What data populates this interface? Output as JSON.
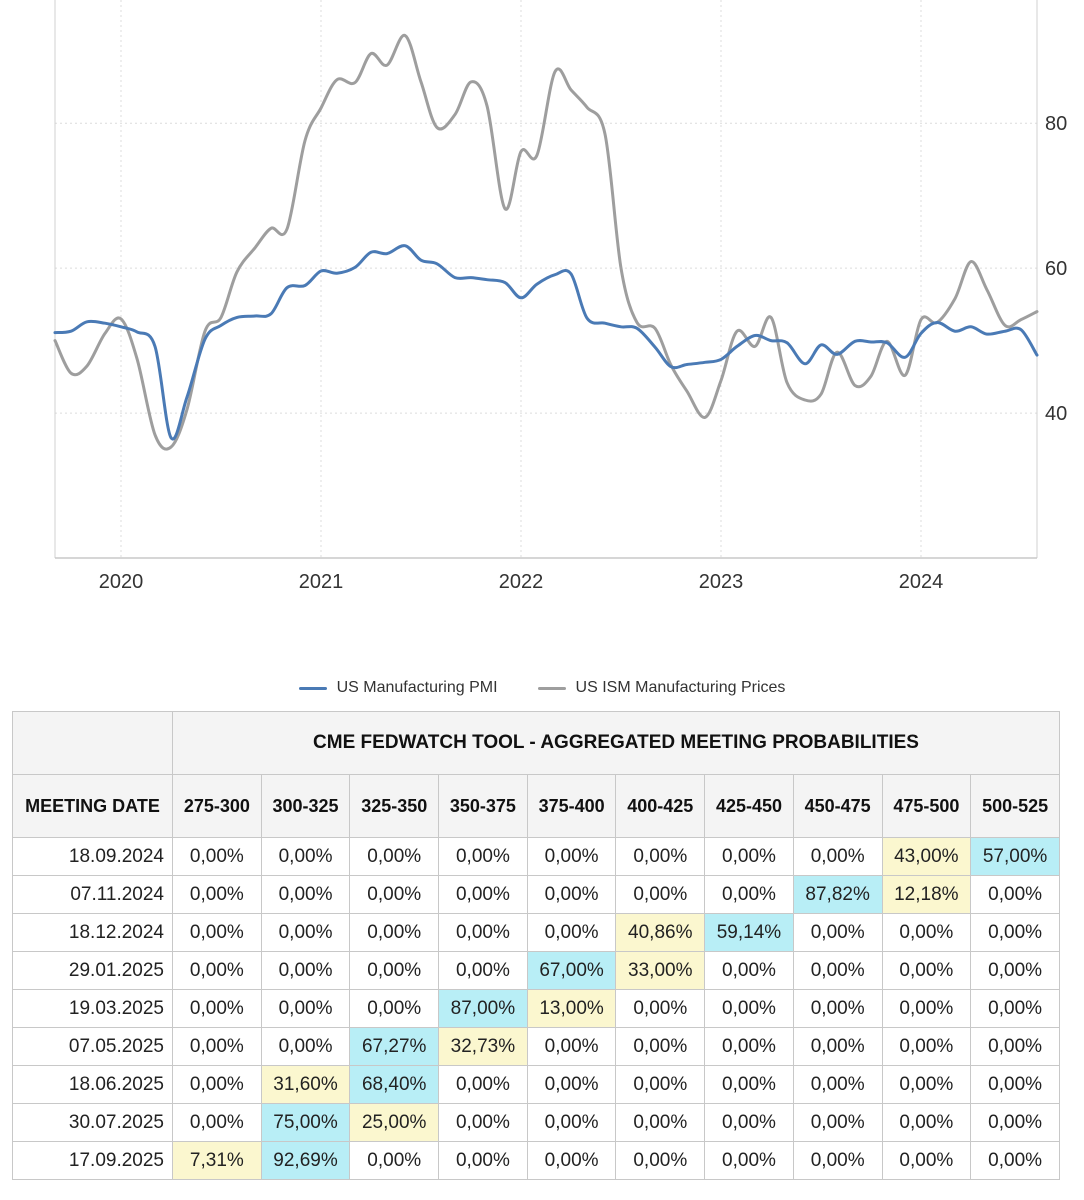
{
  "chart_data": {
    "type": "line",
    "x_ticks": [
      "2020",
      "2021",
      "2022",
      "2023",
      "2024"
    ],
    "y_ticks": [
      "40",
      "60",
      "80"
    ],
    "xlim": [
      2019.67,
      2024.58
    ],
    "ylim": [
      20,
      97
    ],
    "grid": true,
    "legend_position": "bottom-center",
    "series": [
      {
        "name": "US Manufacturing PMI",
        "color": "#4a7ab5",
        "x": [
          2019.67,
          2019.75,
          2019.83,
          2019.92,
          2020.0,
          2020.08,
          2020.17,
          2020.25,
          2020.33,
          2020.42,
          2020.5,
          2020.58,
          2020.67,
          2020.75,
          2020.83,
          2020.92,
          2021.0,
          2021.08,
          2021.17,
          2021.25,
          2021.33,
          2021.42,
          2021.5,
          2021.58,
          2021.67,
          2021.75,
          2021.83,
          2021.92,
          2022.0,
          2022.08,
          2022.17,
          2022.25,
          2022.33,
          2022.42,
          2022.5,
          2022.58,
          2022.67,
          2022.75,
          2022.83,
          2022.92,
          2023.0,
          2023.08,
          2023.17,
          2023.25,
          2023.33,
          2023.42,
          2023.5,
          2023.58,
          2023.67,
          2023.75,
          2023.83,
          2023.92,
          2024.0,
          2024.08,
          2024.17,
          2024.25,
          2024.33,
          2024.42,
          2024.5,
          2024.58
        ],
        "values": [
          51.1,
          51.3,
          52.6,
          52.4,
          51.9,
          51.2,
          49.2,
          36.6,
          42.2,
          50.2,
          52.1,
          53.2,
          53.4,
          53.7,
          57.3,
          57.6,
          59.6,
          59.3,
          60.1,
          62.2,
          62.0,
          63.1,
          61.1,
          60.6,
          58.7,
          58.7,
          58.4,
          58.0,
          55.9,
          57.8,
          59.1,
          59.2,
          53.1,
          52.4,
          51.9,
          51.7,
          49.1,
          46.4,
          46.7,
          47.0,
          47.4,
          49.2,
          50.7,
          50.0,
          49.7,
          46.8,
          49.4,
          48.1,
          49.9,
          49.8,
          49.7,
          47.7,
          51.0,
          52.5,
          51.3,
          51.9,
          50.9,
          51.3,
          51.5,
          48.0
        ]
      },
      {
        "name": "US ISM Manufacturing Prices",
        "color": "#9e9e9e",
        "x": [
          2019.67,
          2019.75,
          2019.83,
          2019.92,
          2020.0,
          2020.08,
          2020.17,
          2020.25,
          2020.33,
          2020.42,
          2020.5,
          2020.58,
          2020.67,
          2020.75,
          2020.83,
          2020.92,
          2021.0,
          2021.08,
          2021.17,
          2021.25,
          2021.33,
          2021.42,
          2021.5,
          2021.58,
          2021.67,
          2021.75,
          2021.83,
          2021.92,
          2022.0,
          2022.08,
          2022.17,
          2022.25,
          2022.33,
          2022.42,
          2022.5,
          2022.58,
          2022.67,
          2022.75,
          2022.83,
          2022.92,
          2023.0,
          2023.08,
          2023.17,
          2023.25,
          2023.33,
          2023.42,
          2023.5,
          2023.58,
          2023.67,
          2023.75,
          2023.83,
          2023.92,
          2024.0,
          2024.08,
          2024.17,
          2024.25,
          2024.33,
          2024.42,
          2024.5,
          2024.58
        ],
        "values": [
          50,
          45.5,
          46.5,
          51,
          53,
          47.5,
          37,
          35.3,
          40.5,
          51.3,
          53.2,
          59.5,
          62.8,
          65.5,
          65.4,
          77.6,
          82.1,
          86,
          85.6,
          89.6,
          88,
          92.1,
          85.7,
          79.4,
          81.2,
          85.7,
          82.4,
          68.2,
          76.1,
          75.6,
          87.1,
          84.6,
          82.2,
          78.5,
          60,
          52.5,
          51.7,
          46.6,
          43,
          39.4,
          44.5,
          51.3,
          49.2,
          53.2,
          44.2,
          41.8,
          42.6,
          48.4,
          43.8,
          45.1,
          49.9,
          45.2,
          52.9,
          52.5,
          55.8,
          60.9,
          57,
          52.1,
          52.9,
          54
        ]
      }
    ]
  },
  "table": {
    "title": "CME FEDWATCH TOOL - AGGREGATED MEETING PROBABILITIES",
    "date_header": "MEETING DATE",
    "ranges": [
      "275-300",
      "300-325",
      "325-350",
      "350-375",
      "375-400",
      "400-425",
      "425-450",
      "450-475",
      "475-500",
      "500-525"
    ],
    "rows": [
      {
        "date": "18.09.2024",
        "values": [
          "0,00%",
          "0,00%",
          "0,00%",
          "0,00%",
          "0,00%",
          "0,00%",
          "0,00%",
          "0,00%",
          "43,00%",
          "57,00%"
        ],
        "highlight": [
          "",
          "",
          "",
          "",
          "",
          "",
          "",
          "",
          "yellow",
          "blue"
        ]
      },
      {
        "date": "07.11.2024",
        "values": [
          "0,00%",
          "0,00%",
          "0,00%",
          "0,00%",
          "0,00%",
          "0,00%",
          "0,00%",
          "87,82%",
          "12,18%",
          "0,00%"
        ],
        "highlight": [
          "",
          "",
          "",
          "",
          "",
          "",
          "",
          "blue",
          "yellow",
          ""
        ]
      },
      {
        "date": "18.12.2024",
        "values": [
          "0,00%",
          "0,00%",
          "0,00%",
          "0,00%",
          "0,00%",
          "40,86%",
          "59,14%",
          "0,00%",
          "0,00%",
          "0,00%"
        ],
        "highlight": [
          "",
          "",
          "",
          "",
          "",
          "yellow",
          "blue",
          "",
          "",
          ""
        ]
      },
      {
        "date": "29.01.2025",
        "values": [
          "0,00%",
          "0,00%",
          "0,00%",
          "0,00%",
          "67,00%",
          "33,00%",
          "0,00%",
          "0,00%",
          "0,00%",
          "0,00%"
        ],
        "highlight": [
          "",
          "",
          "",
          "",
          "blue",
          "yellow",
          "",
          "",
          "",
          ""
        ]
      },
      {
        "date": "19.03.2025",
        "values": [
          "0,00%",
          "0,00%",
          "0,00%",
          "87,00%",
          "13,00%",
          "0,00%",
          "0,00%",
          "0,00%",
          "0,00%",
          "0,00%"
        ],
        "highlight": [
          "",
          "",
          "",
          "blue",
          "yellow",
          "",
          "",
          "",
          "",
          ""
        ]
      },
      {
        "date": "07.05.2025",
        "values": [
          "0,00%",
          "0,00%",
          "67,27%",
          "32,73%",
          "0,00%",
          "0,00%",
          "0,00%",
          "0,00%",
          "0,00%",
          "0,00%"
        ],
        "highlight": [
          "",
          "",
          "blue",
          "yellow",
          "",
          "",
          "",
          "",
          "",
          ""
        ]
      },
      {
        "date": "18.06.2025",
        "values": [
          "0,00%",
          "31,60%",
          "68,40%",
          "0,00%",
          "0,00%",
          "0,00%",
          "0,00%",
          "0,00%",
          "0,00%",
          "0,00%"
        ],
        "highlight": [
          "",
          "yellow",
          "blue",
          "",
          "",
          "",
          "",
          "",
          "",
          ""
        ]
      },
      {
        "date": "30.07.2025",
        "values": [
          "0,00%",
          "75,00%",
          "25,00%",
          "0,00%",
          "0,00%",
          "0,00%",
          "0,00%",
          "0,00%",
          "0,00%",
          "0,00%"
        ],
        "highlight": [
          "",
          "blue",
          "yellow",
          "",
          "",
          "",
          "",
          "",
          "",
          ""
        ]
      },
      {
        "date": "17.09.2025",
        "values": [
          "7,31%",
          "92,69%",
          "0,00%",
          "0,00%",
          "0,00%",
          "0,00%",
          "0,00%",
          "0,00%",
          "0,00%",
          "0,00%"
        ],
        "highlight": [
          "yellow",
          "blue",
          "",
          "",
          "",
          "",
          "",
          "",
          "",
          ""
        ]
      }
    ]
  }
}
